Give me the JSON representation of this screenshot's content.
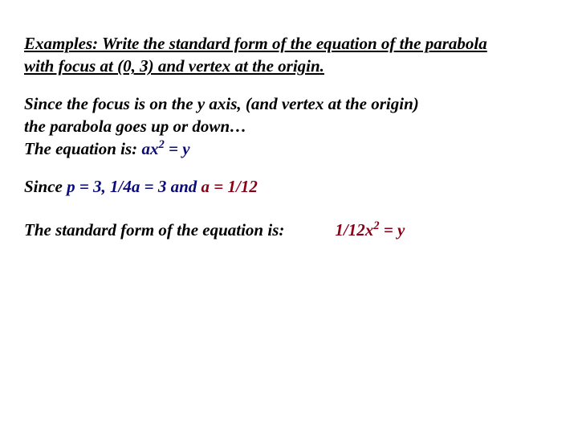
{
  "colors": {
    "black": "#000000",
    "navy": "#0a0a7a",
    "red": "#880015",
    "background": "#ffffff"
  },
  "typography": {
    "font_family": "Times New Roman",
    "font_size_pt": 16,
    "font_style": "italic",
    "font_weight": "bold"
  },
  "para1": {
    "l1": "Examples:  Write the standard form of the equation of the parabola",
    "l2": "with focus at (0, 3) and vertex at the origin."
  },
  "para2": {
    "l1_black": "Since the focus is on the y axis, (and vertex at the origin)",
    "l2_black": "the parabola goes up or down…",
    "l3_black": "The equation is:        ",
    "eq_navy_pre": "ax",
    "eq_navy_sup": "2",
    "eq_navy_post": " = y"
  },
  "para3": {
    "prefix_black": "Since ",
    "mid_navy": "p = 3, 1/4a = 3 and ",
    "end_red": "a = 1/12"
  },
  "para4": {
    "label_black": "The standard form of the equation is:",
    "spacer": "            ",
    "eq_red_pre": "1/12x",
    "eq_red_sup": "2",
    "eq_red_post": " = y"
  }
}
